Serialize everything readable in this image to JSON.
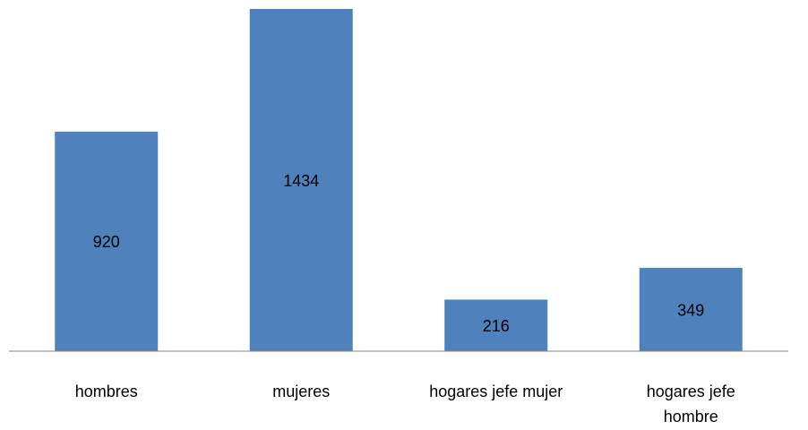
{
  "chart_data": {
    "type": "bar",
    "categories": [
      "hombres",
      "mujeres",
      "hogares jefe mujer",
      "hogares jefe hombre"
    ],
    "values": [
      920,
      1434,
      216,
      349
    ],
    "color": "#4f81bd"
  }
}
